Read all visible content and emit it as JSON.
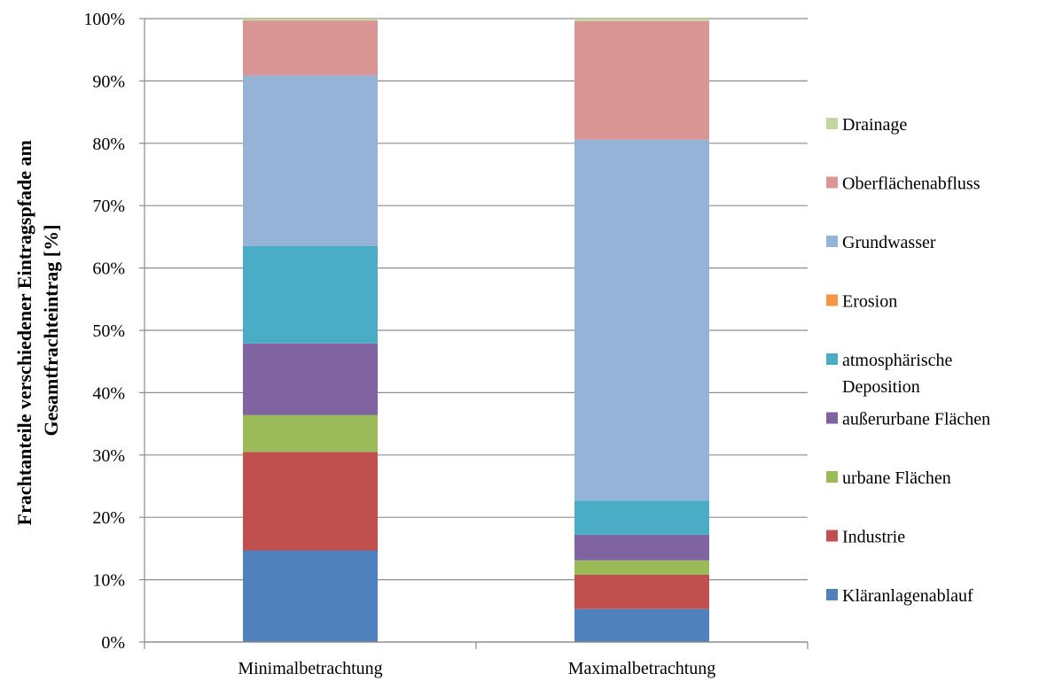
{
  "chart_data": {
    "type": "bar",
    "stacked": true,
    "percent": true,
    "title": "",
    "xlabel": "",
    "ylabel_lines": [
      "Frachtanteile verschiedener Eintragspfade am",
      "Gesamtfrachteintrag [%]"
    ],
    "ylim": [
      0,
      100
    ],
    "yticks": [
      "0%",
      "10%",
      "20%",
      "30%",
      "40%",
      "50%",
      "60%",
      "70%",
      "80%",
      "90%",
      "100%"
    ],
    "grid": true,
    "legend_position": "right",
    "categories": [
      "Minimalbetrachtung",
      "Maximalbetrachtung"
    ],
    "series": [
      {
        "name": "Kläranlagenablauf",
        "color": "#4F81BD",
        "values": [
          14.7,
          5.3
        ]
      },
      {
        "name": "Industrie",
        "color": "#C0504D",
        "values": [
          15.8,
          5.5
        ]
      },
      {
        "name": "urbane Flächen",
        "color": "#9BBB59",
        "values": [
          5.9,
          2.3
        ]
      },
      {
        "name": "außerurbane Flächen",
        "color": "#8064A2",
        "values": [
          11.5,
          4.1
        ]
      },
      {
        "name": "atmosphärische Deposition",
        "label_lines": [
          "atmosphärische",
          "Deposition"
        ],
        "color": "#4BACC6",
        "values": [
          15.6,
          5.5
        ]
      },
      {
        "name": "Erosion",
        "color": "#F79646",
        "values": [
          0.0,
          0.0
        ]
      },
      {
        "name": "Grundwasser",
        "color": "#95B3D7",
        "values": [
          27.4,
          57.9
        ]
      },
      {
        "name": "Oberflächenabfluss",
        "color": "#D99694",
        "values": [
          8.8,
          19.0
        ]
      },
      {
        "name": "Drainage",
        "color": "#C3D69B",
        "values": [
          0.3,
          0.4
        ]
      }
    ]
  }
}
